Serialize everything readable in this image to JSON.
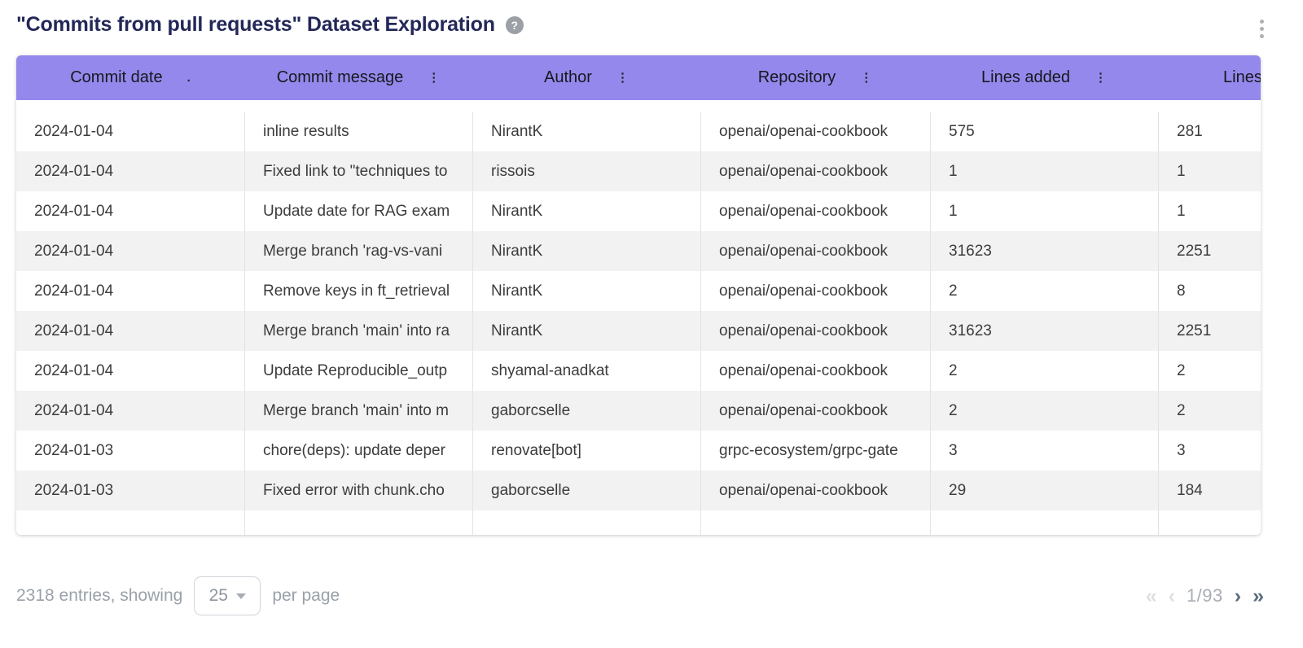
{
  "page": {
    "title": "\"Commits from pull requests\" Dataset Exploration",
    "help_label": "?"
  },
  "table": {
    "columns": [
      {
        "label": "Commit date",
        "menu_glyph": "."
      },
      {
        "label": "Commit message",
        "menu_glyph": "⋮"
      },
      {
        "label": "Author",
        "menu_glyph": "⋮"
      },
      {
        "label": "Repository",
        "menu_glyph": "⋮"
      },
      {
        "label": "Lines added",
        "menu_glyph": "⋮"
      },
      {
        "label": "Lines d",
        "menu_glyph": ""
      }
    ],
    "rows": [
      [
        "2024-01-04",
        "inline results",
        "NirantK",
        "openai/openai-cookbook",
        "575",
        "281"
      ],
      [
        "2024-01-04",
        "Fixed link to \"techniques to",
        "rissois",
        "openai/openai-cookbook",
        "1",
        "1"
      ],
      [
        "2024-01-04",
        "Update date for RAG exam",
        "NirantK",
        "openai/openai-cookbook",
        "1",
        "1"
      ],
      [
        "2024-01-04",
        "Merge branch 'rag-vs-vani",
        "NirantK",
        "openai/openai-cookbook",
        "31623",
        "2251"
      ],
      [
        "2024-01-04",
        "Remove keys in ft_retrieval",
        "NirantK",
        "openai/openai-cookbook",
        "2",
        "8"
      ],
      [
        "2024-01-04",
        "Merge branch 'main' into ra",
        "NirantK",
        "openai/openai-cookbook",
        "31623",
        "2251"
      ],
      [
        "2024-01-04",
        "Update Reproducible_outp",
        "shyamal-anadkat",
        "openai/openai-cookbook",
        "2",
        "2"
      ],
      [
        "2024-01-04",
        "Merge branch 'main' into m",
        "gaborcselle",
        "openai/openai-cookbook",
        "2",
        "2"
      ],
      [
        "2024-01-03",
        "chore(deps): update deper",
        "renovate[bot]",
        "grpc-ecosystem/grpc-gate",
        "3",
        "3"
      ],
      [
        "2024-01-03",
        "Fixed error with chunk.cho",
        "gaborcselle",
        "openai/openai-cookbook",
        "29",
        "184"
      ]
    ],
    "column_keys": [
      "commit-date",
      "commit-message",
      "author",
      "repository",
      "lines-added",
      "lines-deleted"
    ]
  },
  "footer": {
    "entries_text": "2318 entries, showing",
    "page_size": "25",
    "per_page_text": "per page",
    "page_indicator": "1/93",
    "first_glyph": "«",
    "prev_glyph": "‹",
    "next_glyph": "›",
    "last_glyph": "»"
  },
  "colors": {
    "header_background": "#9588ec",
    "title_text": "#232858",
    "row_stripe": "#f2f2f3",
    "cell_text": "#3c3c3c",
    "footer_text": "#9aa1a9",
    "pagination_enabled": "#5a6b7d",
    "pagination_disabled": "#dcdfe3"
  }
}
